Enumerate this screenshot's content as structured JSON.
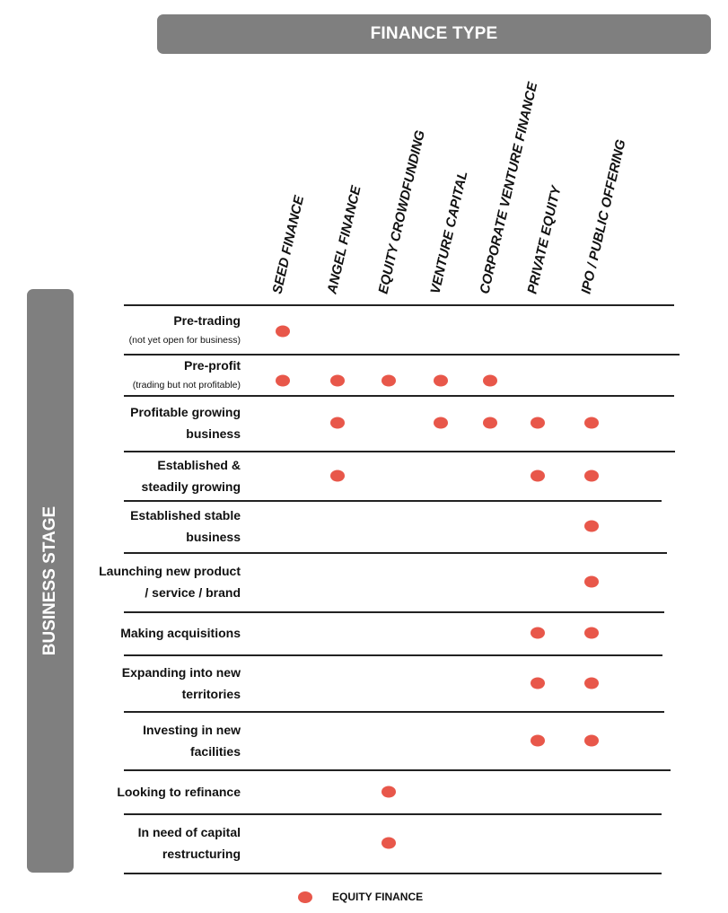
{
  "header": {
    "title": "FINANCE TYPE"
  },
  "sidebar": {
    "title": "BUSINESS STAGE"
  },
  "columns": [
    {
      "label": "SEED FINANCE"
    },
    {
      "label": "ANGEL FINANCE"
    },
    {
      "label": "EQUITY CROWDFUNDING"
    },
    {
      "label": "VENTURE CAPITAL"
    },
    {
      "label": "CORPORATE VENTURE FINANCE"
    },
    {
      "label": "PRIVATE EQUITY"
    },
    {
      "label": "IPO / PUBLIC OFFERING"
    }
  ],
  "rows": [
    {
      "line1": "Pre-trading",
      "sub": "(not yet open for business)",
      "marks": [
        1,
        0,
        0,
        0,
        0,
        0,
        0
      ]
    },
    {
      "line1": "Pre-profit",
      "sub": "(trading but not profitable)",
      "marks": [
        1,
        1,
        1,
        1,
        1,
        0,
        0
      ]
    },
    {
      "line1": "Profitable growing",
      "line2": "business",
      "marks": [
        0,
        1,
        0,
        1,
        1,
        1,
        1
      ]
    },
    {
      "line1": "Established &",
      "line2": "steadily growing",
      "marks": [
        0,
        1,
        0,
        0,
        0,
        1,
        1
      ]
    },
    {
      "line1": "Established stable",
      "line2": "business",
      "marks": [
        0,
        0,
        0,
        0,
        0,
        0,
        1
      ]
    },
    {
      "line1": "Launching new product",
      "line2": "/ service / brand",
      "marks": [
        0,
        0,
        0,
        0,
        0,
        0,
        1
      ]
    },
    {
      "line1": "Making acquisitions",
      "marks": [
        0,
        0,
        0,
        0,
        0,
        1,
        1
      ]
    },
    {
      "line1": "Expanding into new",
      "line2": "territories",
      "marks": [
        0,
        0,
        0,
        0,
        0,
        1,
        1
      ]
    },
    {
      "line1": "Investing in new",
      "line2": "facilities",
      "marks": [
        0,
        0,
        0,
        0,
        0,
        1,
        1
      ]
    },
    {
      "line1": "Looking to refinance",
      "marks": [
        0,
        0,
        1,
        0,
        0,
        0,
        0
      ]
    },
    {
      "line1": "In need of capital",
      "line2": "restructuring",
      "marks": [
        0,
        0,
        1,
        0,
        0,
        0,
        0
      ]
    }
  ],
  "legend": {
    "label": "EQUITY FINANCE",
    "color": "#e8574a"
  },
  "colors": {
    "banner": "#7f7f7f",
    "dot": "#e8574a",
    "rule": "#222222"
  }
}
